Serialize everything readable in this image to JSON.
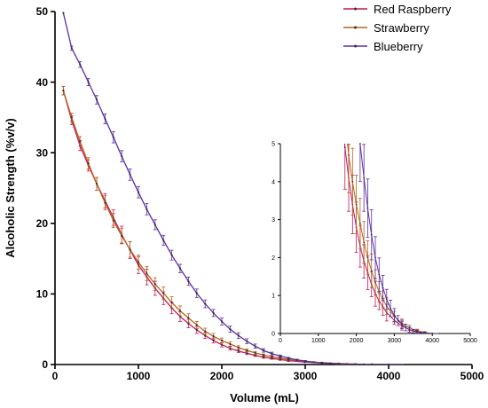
{
  "chart_data": [
    {
      "id": "main",
      "type": "line",
      "title": "",
      "xlabel": "Volume (mL)",
      "ylabel": "Alcoholic Strength (%v/v)",
      "xlim": [
        0,
        5000
      ],
      "ylim": [
        0,
        50
      ],
      "xticks": [
        0,
        1000,
        2000,
        3000,
        4000,
        5000
      ],
      "yticks": [
        0,
        10,
        20,
        30,
        40,
        50
      ],
      "grid": false,
      "legend": "top-right",
      "error_bars": true,
      "series": [
        {
          "name": "Red Raspberry",
          "color": "#c2185b",
          "x": [
            100,
            200,
            300,
            400,
            500,
            600,
            700,
            800,
            900,
            1000,
            1100,
            1200,
            1300,
            1400,
            1500,
            1600,
            1700,
            1800,
            1900,
            2000,
            2100,
            2200,
            2300,
            2400,
            2500,
            2600,
            2700,
            2800,
            3000,
            3200,
            3400,
            3600,
            3800,
            4000
          ],
          "y": [
            38.8,
            34.6,
            31.0,
            28.2,
            25.6,
            23.2,
            20.8,
            18.4,
            16.2,
            14.1,
            12.4,
            10.8,
            9.4,
            8.0,
            6.8,
            5.8,
            4.9,
            4.1,
            3.4,
            2.8,
            2.3,
            1.9,
            1.6,
            1.3,
            1.05,
            0.85,
            0.7,
            0.55,
            0.35,
            0.2,
            0.1,
            0.05,
            0.02,
            0.0
          ],
          "err": [
            0.6,
            0.6,
            0.7,
            0.8,
            0.9,
            1.0,
            1.1,
            1.2,
            1.2,
            1.2,
            1.1,
            1.0,
            0.9,
            0.8,
            0.7,
            0.6,
            0.5,
            0.4,
            0.35,
            0.3,
            0.25,
            0.2,
            0.2,
            0.15,
            0.15,
            0.1,
            0.1,
            0.1,
            0.05,
            0.05,
            0.03,
            0.02,
            0.01,
            0.0
          ]
        },
        {
          "name": "Strawberry",
          "color": "#b5651d",
          "x": [
            100,
            200,
            300,
            400,
            500,
            600,
            700,
            800,
            900,
            1000,
            1100,
            1200,
            1300,
            1400,
            1500,
            1600,
            1700,
            1800,
            1900,
            2000,
            2100,
            2200,
            2300,
            2400,
            2500,
            2600,
            2700,
            2800,
            3000,
            3200,
            3400,
            3600,
            3800,
            4000
          ],
          "y": [
            38.8,
            35.0,
            31.6,
            28.5,
            25.6,
            22.9,
            20.4,
            18.2,
            16.3,
            14.5,
            12.9,
            11.4,
            10.1,
            8.8,
            7.6,
            6.6,
            5.6,
            4.7,
            4.0,
            3.4,
            2.9,
            2.4,
            2.0,
            1.65,
            1.35,
            1.1,
            0.9,
            0.72,
            0.45,
            0.27,
            0.15,
            0.07,
            0.03,
            0.0
          ],
          "err": [
            0.6,
            0.6,
            0.7,
            0.8,
            0.9,
            1.0,
            1.0,
            1.1,
            1.1,
            1.0,
            1.0,
            0.9,
            0.9,
            0.8,
            0.7,
            0.6,
            0.5,
            0.45,
            0.4,
            0.35,
            0.3,
            0.25,
            0.2,
            0.2,
            0.15,
            0.12,
            0.1,
            0.1,
            0.06,
            0.05,
            0.03,
            0.02,
            0.01,
            0.0
          ]
        },
        {
          "name": "Blueberry",
          "color": "#5b2fa0",
          "x": [
            100,
            200,
            300,
            400,
            500,
            600,
            700,
            800,
            900,
            1000,
            1100,
            1200,
            1300,
            1400,
            1500,
            1600,
            1700,
            1800,
            1900,
            2000,
            2100,
            2200,
            2300,
            2400,
            2500,
            2600,
            2700,
            2800,
            2900,
            3000,
            3100,
            3200,
            3300,
            3400,
            3500,
            3600,
            3700,
            3800,
            4000,
            4200
          ],
          "y": [
            49.8,
            44.8,
            42.5,
            40.0,
            37.5,
            34.8,
            32.2,
            29.5,
            26.9,
            24.4,
            22.0,
            19.8,
            17.6,
            15.5,
            13.6,
            11.8,
            10.1,
            8.6,
            7.3,
            6.1,
            5.0,
            4.1,
            3.3,
            2.6,
            2.0,
            1.55,
            1.2,
            0.9,
            0.66,
            0.48,
            0.34,
            0.24,
            0.16,
            0.1,
            0.06,
            0.04,
            0.02,
            0.01,
            0.0,
            0.0
          ],
          "err": [
            0.0,
            0.3,
            0.4,
            0.5,
            0.6,
            0.7,
            0.8,
            0.8,
            0.8,
            0.8,
            0.8,
            0.7,
            0.7,
            0.7,
            0.6,
            0.6,
            0.6,
            0.55,
            0.5,
            0.5,
            0.45,
            0.4,
            0.35,
            0.3,
            0.25,
            0.2,
            0.15,
            0.12,
            0.1,
            0.08,
            0.06,
            0.05,
            0.04,
            0.03,
            0.02,
            0.02,
            0.01,
            0.01,
            0.0,
            0.0
          ]
        }
      ]
    },
    {
      "id": "inset",
      "type": "line",
      "title": "",
      "xlabel": "",
      "ylabel": "",
      "xlim": [
        0,
        5000
      ],
      "ylim": [
        0,
        5
      ],
      "xticks": [
        0,
        1000,
        2000,
        3000,
        4000,
        5000
      ],
      "yticks": [
        0,
        1,
        2,
        3,
        4,
        5
      ],
      "grid": false,
      "note": "zoomed view of the same three series"
    }
  ]
}
